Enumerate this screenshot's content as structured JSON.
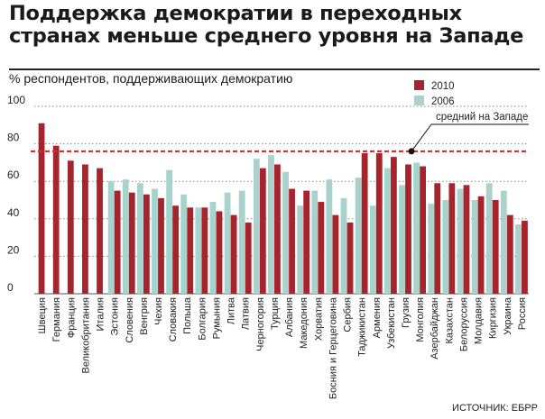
{
  "title_lines": [
    "Поддержка демократии в переходных",
    "странах меньше среднего уровня на Западе"
  ],
  "subtitle": "% респондентов, поддерживающих демократию",
  "source": "ИСТОЧНИК: ЕБРР",
  "colors": {
    "s2010": "#a8242c",
    "s2006": "#a9d2cc",
    "avg": "#cc3333",
    "grid": "#888888"
  },
  "chart_data": {
    "type": "bar",
    "title": "Поддержка демократии в переходных странах меньше среднего уровня на Западе",
    "ylabel": "% респондентов, поддерживающих демократию",
    "ylim": [
      0,
      100
    ],
    "yticks": [
      0,
      20,
      40,
      60,
      80,
      100
    ],
    "grid": true,
    "legend": "top-right",
    "categories": [
      "Швеция",
      "Германия",
      "Франция",
      "Великобритания",
      "Италия",
      "Эстония",
      "Словения",
      "Венгрия",
      "Чехия",
      "Словакия",
      "Польша",
      "Болгария",
      "Румыния",
      "Литва",
      "Латвия",
      "Черногория",
      "Турция",
      "Албания",
      "Македония",
      "Хорватия",
      "Босния и Герцеговина",
      "Сербия",
      "Таджикистан",
      "Армения",
      "Узбекистан",
      "Грузия",
      "Монголия",
      "Азербайджан",
      "Казахстан",
      "Белоруссия",
      "Молдавия",
      "Киргизия",
      "Украина",
      "Россия"
    ],
    "series": [
      {
        "name": "2010",
        "values": [
          91,
          79,
          71,
          69,
          67,
          55,
          54,
          53,
          51,
          47,
          46,
          46,
          44,
          42,
          38,
          67,
          69,
          56,
          55,
          49,
          42,
          38,
          75,
          75,
          73,
          69,
          68,
          59,
          59,
          58,
          52,
          50,
          42,
          39
        ]
      },
      {
        "name": "2006",
        "values": [
          null,
          null,
          null,
          null,
          null,
          60,
          61,
          59,
          56,
          66,
          53,
          46,
          49,
          54,
          55,
          72,
          74,
          65,
          47,
          55,
          61,
          51,
          62,
          47,
          67,
          58,
          70,
          48,
          50,
          56,
          50,
          59,
          55,
          37
        ]
      }
    ],
    "reference_line": {
      "label": "средний на Западе",
      "value": 76
    }
  }
}
